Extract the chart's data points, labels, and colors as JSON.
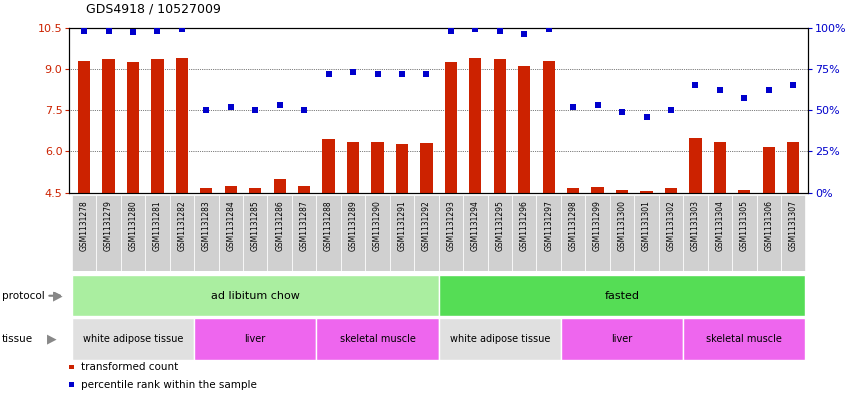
{
  "title": "GDS4918 / 10527009",
  "samples": [
    "GSM1131278",
    "GSM1131279",
    "GSM1131280",
    "GSM1131281",
    "GSM1131282",
    "GSM1131283",
    "GSM1131284",
    "GSM1131285",
    "GSM1131286",
    "GSM1131287",
    "GSM1131288",
    "GSM1131289",
    "GSM1131290",
    "GSM1131291",
    "GSM1131292",
    "GSM1131293",
    "GSM1131294",
    "GSM1131295",
    "GSM1131296",
    "GSM1131297",
    "GSM1131298",
    "GSM1131299",
    "GSM1131300",
    "GSM1131301",
    "GSM1131302",
    "GSM1131303",
    "GSM1131304",
    "GSM1131305",
    "GSM1131306",
    "GSM1131307"
  ],
  "bar_values": [
    9.3,
    9.35,
    9.25,
    9.35,
    9.4,
    4.65,
    4.75,
    4.65,
    5.0,
    4.75,
    6.45,
    6.35,
    6.35,
    6.25,
    6.3,
    9.25,
    9.4,
    9.35,
    9.1,
    9.3,
    4.65,
    4.7,
    4.6,
    4.55,
    4.65,
    6.5,
    6.35,
    4.6,
    6.15,
    6.35
  ],
  "dot_values": [
    98,
    98,
    97,
    98,
    99,
    50,
    52,
    50,
    53,
    50,
    72,
    73,
    72,
    72,
    72,
    98,
    99,
    98,
    96,
    99,
    52,
    53,
    49,
    46,
    50,
    65,
    62,
    57,
    62,
    65
  ],
  "ylim_left": [
    4.5,
    10.5
  ],
  "ylim_right": [
    0,
    100
  ],
  "yticks_left": [
    4.5,
    6.0,
    7.5,
    9.0,
    10.5
  ],
  "yticks_right": [
    0,
    25,
    50,
    75,
    100
  ],
  "ytick_labels_right": [
    "0%",
    "25%",
    "50%",
    "75%",
    "100%"
  ],
  "bar_color": "#CC2200",
  "dot_color": "#0000CC",
  "bar_bottom": 4.5,
  "protocols": [
    {
      "label": "ad libitum chow",
      "start": 0,
      "end": 15,
      "color": "#AAEEA0"
    },
    {
      "label": "fasted",
      "start": 15,
      "end": 30,
      "color": "#55DD55"
    }
  ],
  "tissues": [
    {
      "label": "white adipose tissue",
      "start": 0,
      "end": 5,
      "color": "#E0E0E0"
    },
    {
      "label": "liver",
      "start": 5,
      "end": 10,
      "color": "#EE66EE"
    },
    {
      "label": "skeletal muscle",
      "start": 10,
      "end": 15,
      "color": "#EE66EE"
    },
    {
      "label": "white adipose tissue",
      "start": 15,
      "end": 20,
      "color": "#E0E0E0"
    },
    {
      "label": "liver",
      "start": 20,
      "end": 25,
      "color": "#EE66EE"
    },
    {
      "label": "skeletal muscle",
      "start": 25,
      "end": 30,
      "color": "#EE66EE"
    }
  ],
  "legend_items": [
    {
      "label": "transformed count",
      "color": "#CC2200"
    },
    {
      "label": "percentile rank within the sample",
      "color": "#0000CC"
    }
  ],
  "grid_lines": [
    6.0,
    7.5,
    9.0
  ],
  "sample_box_color": "#D0D0D0",
  "fig_width": 8.46,
  "fig_height": 3.93,
  "dpi": 100
}
